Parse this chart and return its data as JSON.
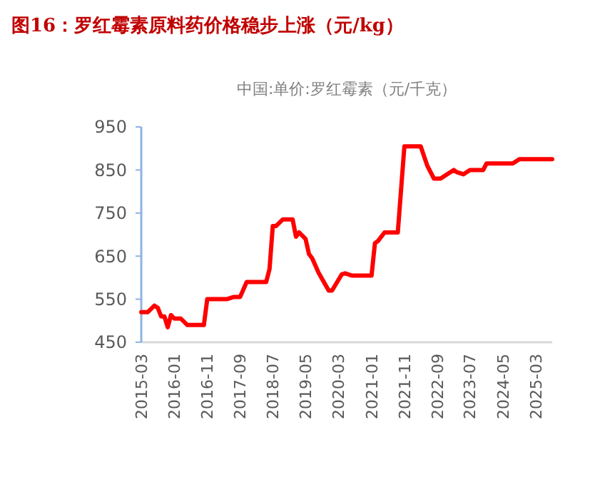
{
  "chart_data": {
    "type": "line",
    "title": "图16：罗红霉素原料药价格稳步上涨（元/kg）",
    "subtitle": "中国:单价:罗红霉素（元/千克）",
    "x": [
      "2015-03",
      "2015-05",
      "2015-07",
      "2015-08",
      "2015-09",
      "2015-10",
      "2015-11",
      "2015-12",
      "2016-01",
      "2016-03",
      "2016-05",
      "2016-10",
      "2016-11",
      "2017-05",
      "2017-07",
      "2017-09",
      "2017-11",
      "2018-05",
      "2018-06",
      "2018-07",
      "2018-08",
      "2018-10",
      "2019-01",
      "2019-02",
      "2019-03",
      "2019-05",
      "2019-06",
      "2019-07",
      "2019-09",
      "2019-12",
      "2020-01",
      "2020-04",
      "2020-05",
      "2020-07",
      "2021-01",
      "2021-02",
      "2021-03",
      "2021-05",
      "2021-09",
      "2021-11",
      "2022-04",
      "2022-06",
      "2022-08",
      "2022-10",
      "2022-12",
      "2023-02",
      "2023-03",
      "2023-05",
      "2023-07",
      "2023-11",
      "2023-12",
      "2024-08",
      "2024-10",
      "2025-08"
    ],
    "series": [
      {
        "color": "#ff0000",
        "values": [
          520,
          520,
          535,
          530,
          510,
          510,
          485,
          513,
          505,
          505,
          490,
          490,
          550,
          550,
          555,
          555,
          590,
          590,
          620,
          720,
          720,
          735,
          735,
          695,
          705,
          690,
          655,
          645,
          610,
          570,
          570,
          608,
          610,
          605,
          605,
          680,
          685,
          705,
          705,
          905,
          905,
          860,
          830,
          830,
          840,
          850,
          845,
          840,
          850,
          850,
          865,
          865,
          875,
          875
        ]
      }
    ],
    "xlim": [
      "2015-03",
      "2025-08"
    ],
    "xticks": [
      "2015-03",
      "2016-01",
      "2016-11",
      "2017-09",
      "2018-07",
      "2019-05",
      "2020-03",
      "2021-01",
      "2021-11",
      "2022-09",
      "2023-07",
      "2024-05",
      "2025-03"
    ],
    "ylim": [
      450,
      950
    ],
    "yticks": [
      450,
      550,
      650,
      750,
      850,
      950
    ],
    "grid": false,
    "marker": "none",
    "line_style": "solid"
  }
}
